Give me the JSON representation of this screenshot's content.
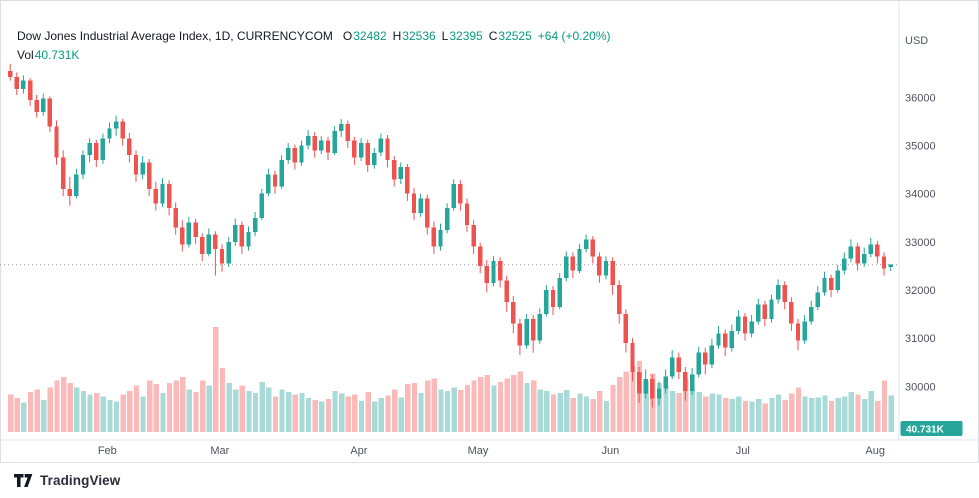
{
  "header": {
    "title": "Dow Jones Industrial Average Index, 1D, CURRENCYCOM",
    "o_label": "O",
    "o_value": "32482",
    "h_label": "H",
    "h_value": "32536",
    "l_label": "L",
    "l_value": "32395",
    "c_label": "C",
    "c_value": "32525",
    "change": "+64 (+0.20%)",
    "vol_label": "Vol",
    "vol_value": "40.731K"
  },
  "footer": {
    "brand": "TradingView"
  },
  "chart_data": {
    "type": "candlestick",
    "title": "Dow Jones Industrial Average Index",
    "interval": "1D",
    "exchange": "CURRENCYCOM",
    "currency": "USD",
    "last": {
      "open": 32482,
      "high": 32536,
      "low": 32395,
      "close": 32525,
      "change_abs": 64,
      "change_pct": 0.2,
      "volume": "40.731K"
    },
    "current_price_line": 32525,
    "volume_label": "40.731K",
    "volume_unit": "K",
    "price_ticks": [
      36000,
      35000,
      34000,
      33000,
      32000,
      31000,
      30000
    ],
    "price_range": [
      29300,
      37400
    ],
    "month_ticks": [
      {
        "label": "Feb",
        "index": 15
      },
      {
        "label": "Mar",
        "index": 32
      },
      {
        "label": "Apr",
        "index": 53
      },
      {
        "label": "May",
        "index": 71
      },
      {
        "label": "Jun",
        "index": 91
      },
      {
        "label": "Jul",
        "index": 111
      },
      {
        "label": "Aug",
        "index": 131
      }
    ],
    "colors": {
      "up": "#26a69a",
      "down": "#ef5350",
      "vol_up": "#26a69a66",
      "vol_down": "#ef535066",
      "axis_text": "#50535e",
      "grid": "#e0e3eb",
      "last_line": "#9598a1",
      "text_up": "#089981",
      "badge_text": "#ffffff"
    },
    "candles": [
      [
        36550,
        36700,
        36350,
        36420,
        42
      ],
      [
        36420,
        36520,
        36050,
        36180,
        38
      ],
      [
        36180,
        36460,
        36080,
        36350,
        33
      ],
      [
        36350,
        36400,
        35820,
        35950,
        45
      ],
      [
        35950,
        36050,
        35580,
        35700,
        48
      ],
      [
        35700,
        36080,
        35620,
        35980,
        36
      ],
      [
        35980,
        36020,
        35280,
        35400,
        50
      ],
      [
        35400,
        35520,
        34600,
        34750,
        58
      ],
      [
        34750,
        34900,
        33950,
        34100,
        62
      ],
      [
        34100,
        34350,
        33750,
        33950,
        55
      ],
      [
        33950,
        34520,
        33900,
        34400,
        50
      ],
      [
        34400,
        34900,
        34300,
        34800,
        46
      ],
      [
        34800,
        35150,
        34650,
        35050,
        42
      ],
      [
        35050,
        35120,
        34550,
        34700,
        44
      ],
      [
        34700,
        35250,
        34620,
        35150,
        40
      ],
      [
        35150,
        35480,
        35050,
        35350,
        36
      ],
      [
        35350,
        35620,
        35200,
        35500,
        34
      ],
      [
        35500,
        35560,
        35000,
        35150,
        42
      ],
      [
        35150,
        35260,
        34650,
        34800,
        46
      ],
      [
        34800,
        34900,
        34250,
        34400,
        52
      ],
      [
        34400,
        34780,
        34300,
        34650,
        40
      ],
      [
        34650,
        34720,
        33950,
        34100,
        58
      ],
      [
        34100,
        34250,
        33650,
        33800,
        54
      ],
      [
        33800,
        34320,
        33720,
        34200,
        44
      ],
      [
        34200,
        34280,
        33550,
        33700,
        55
      ],
      [
        33700,
        33820,
        33150,
        33300,
        58
      ],
      [
        33300,
        33450,
        32800,
        32950,
        62
      ],
      [
        32950,
        33520,
        32880,
        33400,
        48
      ],
      [
        33400,
        33480,
        32950,
        33100,
        45
      ],
      [
        33100,
        33180,
        32600,
        32750,
        58
      ],
      [
        32750,
        33280,
        32700,
        33150,
        52
      ],
      [
        33150,
        33220,
        32300,
        32850,
        118
      ],
      [
        32850,
        32950,
        32380,
        32550,
        72
      ],
      [
        32550,
        33100,
        32480,
        33000,
        55
      ],
      [
        33000,
        33480,
        32920,
        33350,
        48
      ],
      [
        33350,
        33420,
        32750,
        32900,
        52
      ],
      [
        32900,
        33320,
        32820,
        33200,
        46
      ],
      [
        33200,
        33620,
        33120,
        33500,
        44
      ],
      [
        33500,
        34100,
        33450,
        34000,
        56
      ],
      [
        34000,
        34520,
        33950,
        34400,
        50
      ],
      [
        34400,
        34480,
        34000,
        34150,
        40
      ],
      [
        34150,
        34800,
        34100,
        34700,
        48
      ],
      [
        34700,
        35050,
        34620,
        34950,
        45
      ],
      [
        34950,
        35020,
        34500,
        34650,
        42
      ],
      [
        34650,
        35100,
        34580,
        35000,
        44
      ],
      [
        35000,
        35320,
        34920,
        35200,
        38
      ],
      [
        35200,
        35280,
        34750,
        34900,
        36
      ],
      [
        34900,
        35200,
        34820,
        35100,
        34
      ],
      [
        35100,
        35180,
        34700,
        34850,
        37
      ],
      [
        34850,
        35400,
        34800,
        35300,
        46
      ],
      [
        35300,
        35550,
        35180,
        35450,
        43
      ],
      [
        35450,
        35520,
        34950,
        35100,
        40
      ],
      [
        35100,
        35180,
        34600,
        34750,
        42
      ],
      [
        34750,
        35150,
        34680,
        35050,
        35
      ],
      [
        35050,
        35120,
        34450,
        34600,
        45
      ],
      [
        34600,
        34950,
        34520,
        34850,
        34
      ],
      [
        34850,
        35250,
        34780,
        35150,
        38
      ],
      [
        35150,
        35220,
        34550,
        34700,
        41
      ],
      [
        34700,
        34780,
        34150,
        34300,
        48
      ],
      [
        34300,
        34650,
        34200,
        34550,
        39
      ],
      [
        34550,
        34620,
        33850,
        34000,
        54
      ],
      [
        34000,
        34120,
        33450,
        33600,
        55
      ],
      [
        33600,
        34000,
        33520,
        33900,
        44
      ],
      [
        33900,
        33980,
        33150,
        33300,
        58
      ],
      [
        33300,
        33420,
        32750,
        32900,
        60
      ],
      [
        32900,
        33380,
        32820,
        33250,
        48
      ],
      [
        33250,
        33800,
        33180,
        33700,
        46
      ],
      [
        33700,
        34300,
        33650,
        34200,
        50
      ],
      [
        34200,
        34280,
        33650,
        33800,
        47
      ],
      [
        33800,
        33900,
        33200,
        33350,
        53
      ],
      [
        33350,
        33450,
        32750,
        32900,
        58
      ],
      [
        32900,
        32980,
        32350,
        32500,
        62
      ],
      [
        32500,
        32620,
        31950,
        32150,
        64
      ],
      [
        32150,
        32700,
        32080,
        32600,
        52
      ],
      [
        32600,
        32680,
        32050,
        32200,
        56
      ],
      [
        32200,
        32300,
        31550,
        31750,
        60
      ],
      [
        31750,
        31880,
        31100,
        31300,
        64
      ],
      [
        31300,
        31400,
        30650,
        30850,
        68
      ],
      [
        30850,
        31500,
        30780,
        31400,
        55
      ],
      [
        31400,
        31480,
        30700,
        30950,
        58
      ],
      [
        30950,
        31620,
        30880,
        31500,
        48
      ],
      [
        31500,
        32100,
        31450,
        32000,
        46
      ],
      [
        32000,
        32080,
        31480,
        31650,
        42
      ],
      [
        31650,
        32350,
        31600,
        32250,
        44
      ],
      [
        32250,
        32800,
        32180,
        32700,
        47
      ],
      [
        32700,
        32780,
        32250,
        32400,
        38
      ],
      [
        32400,
        32950,
        32350,
        32850,
        43
      ],
      [
        32850,
        33150,
        32780,
        33050,
        40
      ],
      [
        33050,
        33120,
        32550,
        32700,
        37
      ],
      [
        32700,
        32780,
        32150,
        32300,
        46
      ],
      [
        32300,
        32700,
        32220,
        32600,
        35
      ],
      [
        32600,
        32680,
        31900,
        32100,
        53
      ],
      [
        32100,
        32200,
        31300,
        31500,
        62
      ],
      [
        31500,
        31600,
        30700,
        30900,
        68
      ],
      [
        30900,
        31000,
        30100,
        30300,
        74
      ],
      [
        30300,
        30400,
        29650,
        29850,
        80
      ],
      [
        29850,
        30350,
        29750,
        30150,
        58
      ],
      [
        30150,
        30250,
        29560,
        29750,
        66
      ],
      [
        29750,
        30100,
        29600,
        29950,
        55
      ],
      [
        29950,
        30350,
        29850,
        30200,
        52
      ],
      [
        30200,
        30750,
        30150,
        30600,
        46
      ],
      [
        30600,
        30700,
        30150,
        30300,
        44
      ],
      [
        30300,
        30400,
        29700,
        29900,
        60
      ],
      [
        29900,
        30380,
        29820,
        30250,
        48
      ],
      [
        30250,
        30820,
        30180,
        30700,
        45
      ],
      [
        30700,
        30800,
        30250,
        30450,
        40
      ],
      [
        30450,
        30980,
        30380,
        30850,
        43
      ],
      [
        30850,
        31250,
        30780,
        31100,
        42
      ],
      [
        31100,
        31180,
        30620,
        30800,
        38
      ],
      [
        30800,
        31280,
        30720,
        31150,
        37
      ],
      [
        31150,
        31580,
        31080,
        31450,
        40
      ],
      [
        31450,
        31520,
        30950,
        31100,
        35
      ],
      [
        31100,
        31480,
        31020,
        31350,
        34
      ],
      [
        31350,
        31820,
        31280,
        31700,
        37
      ],
      [
        31700,
        31780,
        31250,
        31400,
        32
      ],
      [
        31400,
        31900,
        31320,
        31800,
        38
      ],
      [
        31800,
        32220,
        31720,
        32100,
        42
      ],
      [
        32100,
        32180,
        31600,
        31750,
        36
      ],
      [
        31750,
        31850,
        31150,
        31300,
        43
      ],
      [
        31300,
        31400,
        30750,
        30950,
        50
      ],
      [
        30950,
        31480,
        30880,
        31350,
        40
      ],
      [
        31350,
        31780,
        31280,
        31650,
        38
      ],
      [
        31650,
        32080,
        31580,
        31950,
        39
      ],
      [
        31950,
        32380,
        31880,
        32250,
        41
      ],
      [
        32250,
        32320,
        31850,
        32000,
        35
      ],
      [
        32000,
        32520,
        31950,
        32400,
        38
      ],
      [
        32400,
        32780,
        32320,
        32650,
        40
      ],
      [
        32650,
        33050,
        32580,
        32900,
        45
      ],
      [
        32900,
        32980,
        32400,
        32550,
        42
      ],
      [
        32550,
        32880,
        32480,
        32750,
        37
      ],
      [
        32750,
        33080,
        32680,
        32950,
        46
      ],
      [
        32950,
        33020,
        32550,
        32700,
        35
      ],
      [
        32700,
        32780,
        32300,
        32450,
        58
      ],
      [
        32482,
        32536,
        32395,
        32525,
        41
      ]
    ]
  }
}
